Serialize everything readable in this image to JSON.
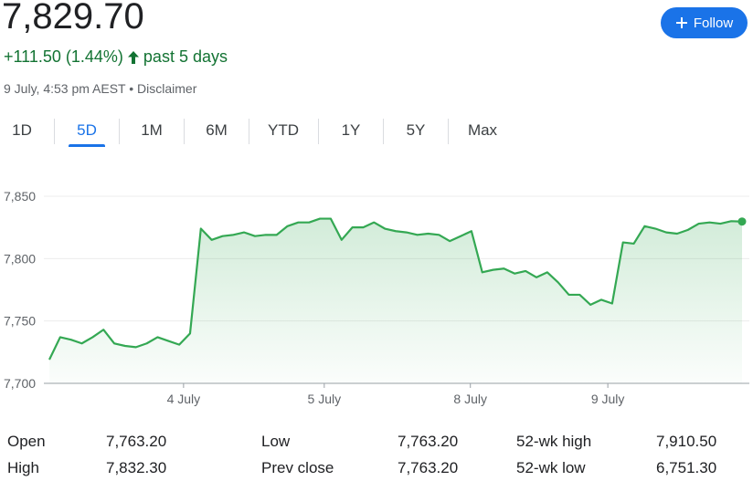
{
  "header": {
    "price": "7,829.70",
    "change": "+111.50 (1.44%)",
    "period": "past 5 days",
    "timestamp": "9 July, 4:53 pm AEST",
    "separator": "•",
    "disclaimer": "Disclaimer",
    "follow": "Follow"
  },
  "tabs": {
    "items": [
      "1D",
      "5D",
      "1M",
      "6M",
      "YTD",
      "1Y",
      "5Y",
      "Max"
    ],
    "selected": 1
  },
  "chart_data": {
    "type": "line",
    "x": [
      0,
      1,
      2,
      3,
      4,
      5,
      6,
      7,
      8,
      9,
      10,
      11,
      12,
      13,
      14,
      15,
      16,
      17,
      18,
      19,
      20,
      21,
      22,
      23,
      24,
      25,
      26,
      27,
      28,
      29,
      30,
      31,
      32,
      33,
      34,
      35,
      36,
      37,
      38,
      39,
      40,
      41,
      42,
      43,
      44,
      45,
      46,
      47,
      48,
      49,
      50,
      51,
      52,
      53,
      54,
      55,
      56,
      57,
      58,
      59,
      60,
      61,
      62,
      63,
      64
    ],
    "series": [
      {
        "color": "#34a853",
        "values": [
          7719,
          7737,
          7735,
          7732,
          7737,
          7743,
          7732,
          7730,
          7729,
          7732,
          7737,
          7734,
          7731,
          7740,
          7824,
          7815,
          7818,
          7819,
          7821,
          7818,
          7819,
          7819,
          7826,
          7829,
          7829,
          7832,
          7832,
          7815,
          7825,
          7825,
          7829,
          7824,
          7822,
          7821,
          7819,
          7820,
          7819,
          7814,
          7818,
          7822,
          7789,
          7791,
          7792,
          7788,
          7790,
          7785,
          7789,
          7781,
          7771,
          7771,
          7763,
          7767,
          7764,
          7813,
          7812,
          7826,
          7824,
          7821,
          7820,
          7823,
          7828,
          7829,
          7828,
          7830,
          7829.7
        ]
      }
    ],
    "xlim": [
      0,
      64
    ],
    "xticks": [
      {
        "value": 12.4,
        "label": "4 July"
      },
      {
        "value": 25.4,
        "label": "5 July"
      },
      {
        "value": 38.9,
        "label": "8 July"
      },
      {
        "value": 51.6,
        "label": "9 July"
      }
    ],
    "ylim": [
      7700,
      7875
    ],
    "yticks": [
      {
        "value": 7700,
        "label": "7,700"
      },
      {
        "value": 7750,
        "label": "7,750"
      },
      {
        "value": 7800,
        "label": "7,800"
      },
      {
        "value": 7850,
        "label": "7,850"
      }
    ],
    "grid": true
  },
  "stats": [
    [
      {
        "label": "Open",
        "value": "7,763.20"
      },
      {
        "label": "Low",
        "value": "7,763.20"
      },
      {
        "label": "52-wk high",
        "value": "7,910.50"
      }
    ],
    [
      {
        "label": "High",
        "value": "7,832.30"
      },
      {
        "label": "Prev close",
        "value": "7,763.20"
      },
      {
        "label": "52-wk low",
        "value": "6,751.30"
      }
    ]
  ]
}
